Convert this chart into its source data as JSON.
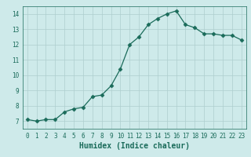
{
  "x": [
    0,
    1,
    2,
    3,
    4,
    5,
    6,
    7,
    8,
    9,
    10,
    11,
    12,
    13,
    14,
    15,
    16,
    17,
    18,
    19,
    20,
    21,
    22,
    23
  ],
  "y": [
    7.1,
    7.0,
    7.1,
    7.1,
    7.6,
    7.8,
    7.9,
    8.6,
    8.7,
    9.3,
    10.4,
    12.0,
    12.5,
    13.3,
    13.7,
    14.0,
    14.2,
    13.3,
    13.1,
    12.7,
    12.7,
    12.6,
    12.6,
    12.3
  ],
  "line_color": "#1a6b5a",
  "marker": "D",
  "marker_size": 2.5,
  "bg_color": "#ceeaea",
  "grid_color": "#aecece",
  "xlabel": "Humidex (Indice chaleur)",
  "xlim": [
    -0.5,
    23.5
  ],
  "ylim": [
    6.5,
    14.5
  ],
  "yticks": [
    7,
    8,
    9,
    10,
    11,
    12,
    13,
    14
  ],
  "xticks": [
    0,
    1,
    2,
    3,
    4,
    5,
    6,
    7,
    8,
    9,
    10,
    11,
    12,
    13,
    14,
    15,
    16,
    17,
    18,
    19,
    20,
    21,
    22,
    23
  ],
  "tick_fontsize": 5.5,
  "xlabel_fontsize": 7,
  "tick_color": "#1a6b5a",
  "axis_color": "#1a6b5a",
  "linewidth": 0.9
}
